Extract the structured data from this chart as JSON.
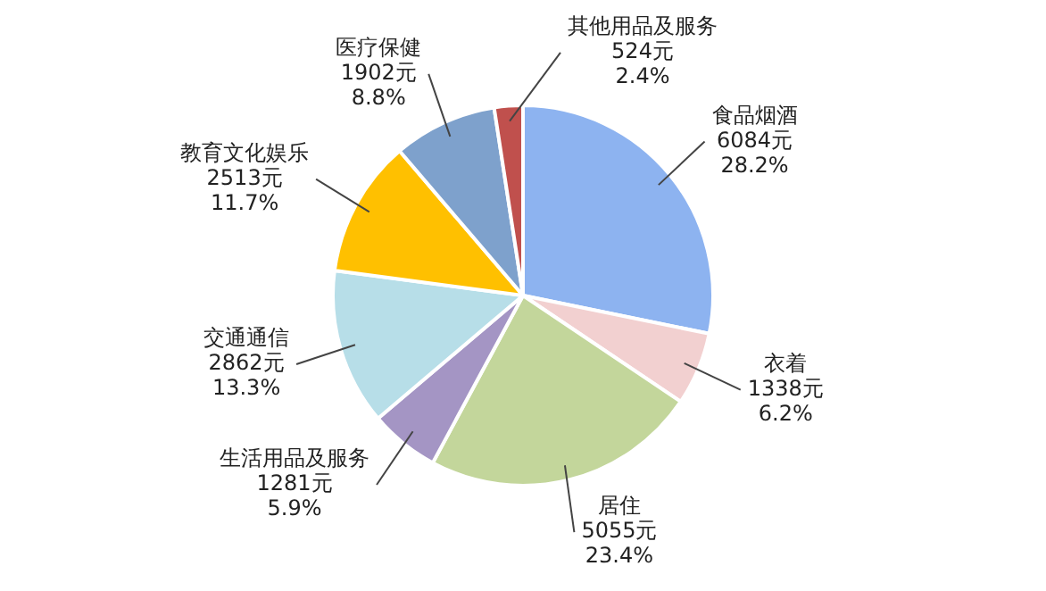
{
  "chart_data": {
    "type": "pie",
    "categories": [
      "食品烟酒",
      "衣着",
      "居住",
      "生活用品及服务",
      "交通通信",
      "教育文化娱乐",
      "医疗保健",
      "其他用品及服务"
    ],
    "values": [
      6084,
      1338,
      5055,
      1281,
      2862,
      2513,
      1902,
      524
    ],
    "value_labels": [
      "6084元\n28.2%",
      "1338元\n6.2%",
      "5055元\n23.4%",
      "1281元\n5.9%",
      "2862元\n13.3%",
      "2513元\n11.7%",
      "1902元\n8.8%",
      "524元\n2.4%"
    ],
    "colors": [
      "#8db3f0",
      "#f2d0d0",
      "#c3d69b",
      "#a495c4",
      "#b7dee8",
      "#ffc000",
      "#7ea1cc",
      "#c0504d"
    ],
    "legend": false
  }
}
